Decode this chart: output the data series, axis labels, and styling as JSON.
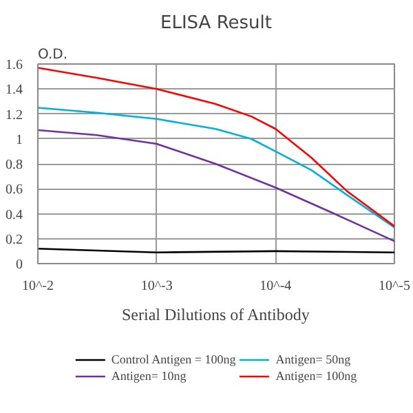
{
  "chart_data": {
    "type": "line",
    "title": "ELISA Result",
    "ylabel": "O.D.",
    "xlabel": "Serial Dilutions of Antibody",
    "log": "x",
    "xlim": [
      0.01,
      1e-05
    ],
    "xticks": [
      {
        "value": 0.01,
        "label": "10^-2"
      },
      {
        "value": 0.001,
        "label": "10^-3"
      },
      {
        "value": 0.0001,
        "label": "10^-4"
      },
      {
        "value": 1e-05,
        "label": "10^-5"
      }
    ],
    "ylim": [
      0,
      1.6
    ],
    "yticks": [
      0,
      0.2,
      0.4,
      0.6,
      0.8,
      1,
      1.2,
      1.4,
      1.6
    ],
    "grid": true,
    "legend": "bottom",
    "marker": "none",
    "line_style": "solid",
    "series": [
      {
        "name": "Control Antigen = 100ng",
        "color": "#000000",
        "x": [
          0.01,
          0.001,
          0.0001,
          1e-05
        ],
        "values": [
          0.12,
          0.09,
          0.1,
          0.09
        ]
      },
      {
        "name": "Antigen= 10ng",
        "color": "#7030a0",
        "x": [
          0.01,
          0.0032,
          0.001,
          0.00032,
          0.0001,
          3.2e-05,
          1e-05
        ],
        "values": [
          1.07,
          1.03,
          0.96,
          0.8,
          0.61,
          0.4,
          0.18
        ]
      },
      {
        "name": "Antigen= 50ng",
        "color": "#00b0d8",
        "x": [
          0.01,
          0.0032,
          0.001,
          0.00032,
          0.00016,
          0.0001,
          5e-05,
          2.5e-05,
          1e-05
        ],
        "values": [
          1.25,
          1.21,
          1.16,
          1.08,
          1.0,
          0.9,
          0.75,
          0.55,
          0.29
        ]
      },
      {
        "name": "Antigen= 100ng",
        "color": "#ff0000",
        "x": [
          0.01,
          0.0032,
          0.001,
          0.00032,
          0.00016,
          0.0001,
          5e-05,
          2.5e-05,
          1e-05
        ],
        "values": [
          1.57,
          1.49,
          1.4,
          1.28,
          1.18,
          1.08,
          0.85,
          0.58,
          0.3
        ]
      }
    ]
  }
}
